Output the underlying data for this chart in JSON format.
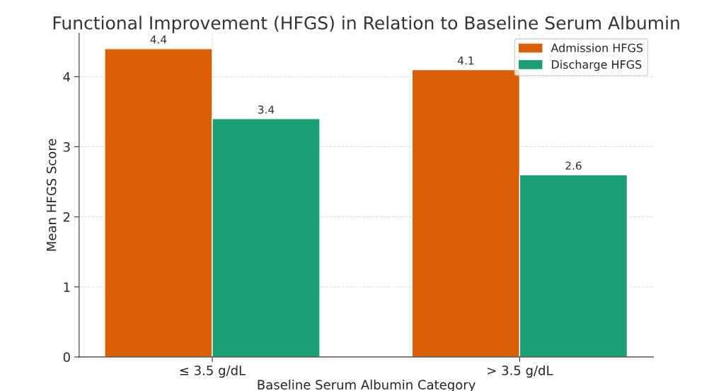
{
  "chart_data": {
    "type": "bar",
    "title": "Functional Improvement (HFGS) in Relation to Baseline Serum Albumin",
    "xlabel": "Baseline Serum Albumin Category",
    "ylabel": "Mean HFGS Score",
    "categories": [
      "≤ 3.5 g/dL",
      "> 3.5 g/dL"
    ],
    "series": [
      {
        "name": "Admission HFGS",
        "color": "#d95f02",
        "values": [
          4.4,
          4.1
        ]
      },
      {
        "name": "Discharge HFGS",
        "color": "#1b9e77",
        "values": [
          3.4,
          2.6
        ]
      }
    ],
    "ylim": [
      0,
      4.62
    ],
    "yticks": [
      0,
      1,
      2,
      3,
      4
    ],
    "grid": true,
    "legend": "top right",
    "data_labels": true
  }
}
